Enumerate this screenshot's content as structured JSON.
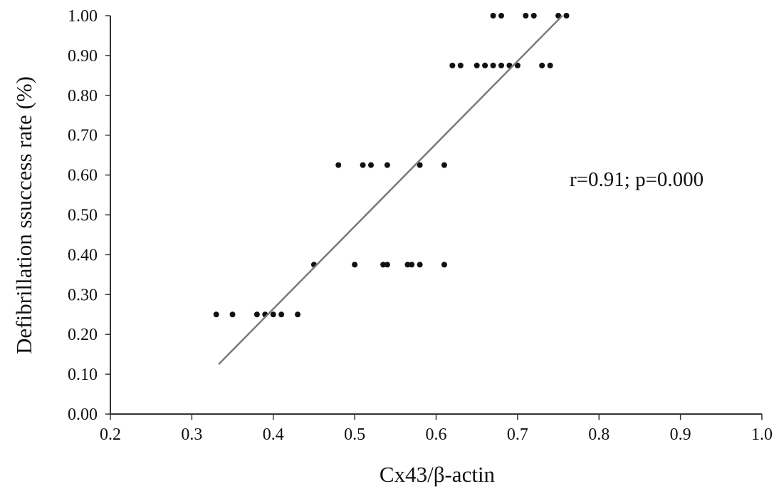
{
  "chart_data": {
    "type": "scatter",
    "title": "",
    "xlabel": "Cx43/β-actin",
    "ylabel": "Defibrillation ssuccess rate (%)",
    "xlim": [
      0.2,
      1.0
    ],
    "ylim": [
      0.0,
      1.0
    ],
    "grid": false,
    "x_ticks": [
      "0.2",
      "0.3",
      "0.4",
      "0.5",
      "0.6",
      "0.7",
      "0.8",
      "0.9",
      "1.0"
    ],
    "y_ticks": [
      "0.00",
      "0.10",
      "0.20",
      "0.30",
      "0.40",
      "0.50",
      "0.60",
      "0.70",
      "0.80",
      "0.90",
      "1.00"
    ],
    "annotation": "r=0.91; p=0.000",
    "colors": {
      "points": "#111111",
      "fit_line": "#7a7a7a",
      "axis": "#333333"
    },
    "points": [
      [
        0.33,
        0.25
      ],
      [
        0.35,
        0.25
      ],
      [
        0.38,
        0.25
      ],
      [
        0.39,
        0.25
      ],
      [
        0.4,
        0.25
      ],
      [
        0.41,
        0.25
      ],
      [
        0.43,
        0.25
      ],
      [
        0.45,
        0.375
      ],
      [
        0.5,
        0.375
      ],
      [
        0.535,
        0.375
      ],
      [
        0.54,
        0.375
      ],
      [
        0.565,
        0.375
      ],
      [
        0.57,
        0.375
      ],
      [
        0.58,
        0.375
      ],
      [
        0.61,
        0.375
      ],
      [
        0.48,
        0.625
      ],
      [
        0.51,
        0.625
      ],
      [
        0.52,
        0.625
      ],
      [
        0.54,
        0.625
      ],
      [
        0.58,
        0.625
      ],
      [
        0.61,
        0.625
      ],
      [
        0.62,
        0.875
      ],
      [
        0.63,
        0.875
      ],
      [
        0.65,
        0.875
      ],
      [
        0.66,
        0.875
      ],
      [
        0.67,
        0.875
      ],
      [
        0.68,
        0.875
      ],
      [
        0.69,
        0.875
      ],
      [
        0.7,
        0.875
      ],
      [
        0.73,
        0.875
      ],
      [
        0.74,
        0.875
      ],
      [
        0.67,
        1.0
      ],
      [
        0.68,
        1.0
      ],
      [
        0.71,
        1.0
      ],
      [
        0.72,
        1.0
      ],
      [
        0.75,
        1.0
      ],
      [
        0.76,
        1.0
      ]
    ],
    "fit_line": {
      "x": [
        0.333,
        0.755
      ],
      "y": [
        0.125,
        1.0
      ]
    }
  }
}
